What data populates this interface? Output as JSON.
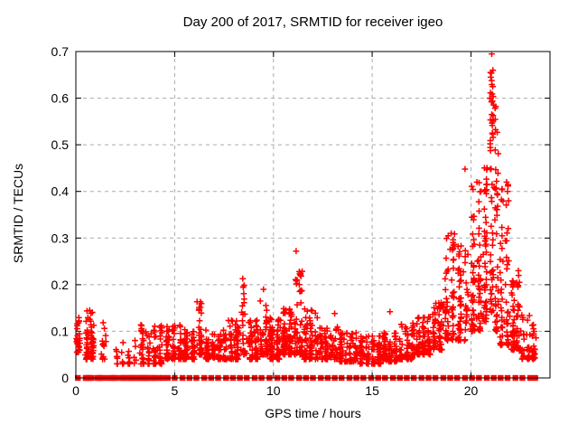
{
  "window": {
    "background": "#ffffff"
  },
  "chart_data": {
    "type": "scatter",
    "title": "Day 200 of 2017, SRMTID for receiver igeo",
    "xlabel": "GPS time / hours",
    "ylabel": "SRMTID / TECUs",
    "xlim": [
      0,
      24
    ],
    "ylim": [
      0,
      0.7
    ],
    "xticks": [
      {
        "v": 0,
        "label": "0"
      },
      {
        "v": 5,
        "label": "5"
      },
      {
        "v": 10,
        "label": "10"
      },
      {
        "v": 15,
        "label": "15"
      },
      {
        "v": 20,
        "label": "20"
      }
    ],
    "yticks": [
      {
        "v": 0.0,
        "label": "0"
      },
      {
        "v": 0.1,
        "label": "0.1"
      },
      {
        "v": 0.2,
        "label": "0.2"
      },
      {
        "v": 0.3,
        "label": "0.3"
      },
      {
        "v": 0.4,
        "label": "0.4"
      },
      {
        "v": 0.5,
        "label": "0.5"
      },
      {
        "v": 0.6,
        "label": "0.6"
      },
      {
        "v": 0.7,
        "label": "0.7"
      }
    ],
    "grid": true,
    "legend": "none",
    "marker": "plus",
    "colors": {
      "marker": "#ff0000",
      "grid": "#aaaaaa",
      "axis": "#000000",
      "text": "#000000"
    },
    "bands": [
      [
        0.02,
        0.22,
        0.055,
        0.13,
        28,
        1.6
      ],
      [
        0.45,
        0.95,
        0.04,
        0.145,
        60,
        1.8
      ],
      [
        1.25,
        1.6,
        0.04,
        0.12,
        14,
        2.0
      ],
      [
        1.9,
        3.15,
        0.03,
        0.085,
        26,
        1.8
      ],
      [
        3.2,
        4.45,
        0.03,
        0.115,
        85,
        2.0
      ],
      [
        4.5,
        5.4,
        0.04,
        0.115,
        85,
        2.0
      ],
      [
        5.4,
        6.1,
        0.04,
        0.105,
        70,
        2.0
      ],
      [
        6.1,
        6.5,
        0.05,
        0.165,
        40,
        2.2
      ],
      [
        6.5,
        7.4,
        0.04,
        0.105,
        80,
        2.0
      ],
      [
        7.4,
        8.3,
        0.04,
        0.125,
        80,
        2.0
      ],
      [
        8.3,
        8.7,
        0.05,
        0.2,
        30,
        2.4
      ],
      [
        8.7,
        9.3,
        0.04,
        0.125,
        65,
        2.0
      ],
      [
        9.3,
        9.75,
        0.05,
        0.165,
        50,
        2.0
      ],
      [
        9.75,
        10.4,
        0.04,
        0.135,
        85,
        2.0
      ],
      [
        10.4,
        11.0,
        0.05,
        0.155,
        90,
        1.8
      ],
      [
        11.0,
        11.5,
        0.05,
        0.23,
        60,
        2.4
      ],
      [
        11.5,
        12.3,
        0.04,
        0.15,
        80,
        2.2
      ],
      [
        12.3,
        13.3,
        0.04,
        0.11,
        85,
        2.0
      ],
      [
        13.3,
        14.3,
        0.035,
        0.1,
        85,
        2.0
      ],
      [
        14.3,
        15.5,
        0.03,
        0.09,
        90,
        1.8
      ],
      [
        15.5,
        16.3,
        0.035,
        0.1,
        75,
        1.8
      ],
      [
        16.3,
        17.2,
        0.04,
        0.12,
        80,
        2.0
      ],
      [
        17.2,
        18.0,
        0.05,
        0.135,
        70,
        1.8
      ],
      [
        18.0,
        18.6,
        0.06,
        0.165,
        60,
        1.7
      ],
      [
        18.6,
        19.25,
        0.08,
        0.31,
        70,
        1.8
      ],
      [
        19.25,
        19.95,
        0.08,
        0.285,
        60,
        1.8
      ],
      [
        19.95,
        20.6,
        0.1,
        0.42,
        80,
        1.7
      ],
      [
        20.6,
        20.9,
        0.12,
        0.47,
        45,
        1.4
      ],
      [
        20.9,
        21.2,
        0.14,
        0.66,
        55,
        1.3
      ],
      [
        21.2,
        21.4,
        0.1,
        0.6,
        40,
        1.5
      ],
      [
        21.4,
        22.0,
        0.07,
        0.42,
        60,
        1.8
      ],
      [
        22.0,
        22.5,
        0.06,
        0.22,
        60,
        1.8
      ],
      [
        22.5,
        23.3,
        0.04,
        0.135,
        55,
        1.8
      ]
    ],
    "outliers": [
      [
        21.05,
        0.695
      ],
      [
        21.0,
        0.645
      ],
      [
        21.1,
        0.625
      ],
      [
        20.95,
        0.6
      ],
      [
        21.15,
        0.585
      ],
      [
        21.05,
        0.565
      ],
      [
        19.7,
        0.448
      ],
      [
        20.3,
        0.42
      ],
      [
        20.5,
        0.4
      ],
      [
        21.8,
        0.42
      ],
      [
        21.85,
        0.4
      ],
      [
        21.9,
        0.38
      ],
      [
        18.85,
        0.305
      ],
      [
        19.0,
        0.31
      ],
      [
        11.15,
        0.272
      ],
      [
        11.2,
        0.21
      ],
      [
        8.45,
        0.213
      ],
      [
        9.5,
        0.19
      ],
      [
        6.3,
        0.163
      ],
      [
        15.9,
        0.142
      ],
      [
        13.1,
        0.138
      ],
      [
        22.4,
        0.23
      ],
      [
        22.45,
        0.205
      ],
      [
        0.7,
        0.145
      ]
    ],
    "zero_line_x": [
      0.1,
      0.5,
      0.6,
      0.7,
      0.8,
      1.1,
      1.2,
      1.3,
      1.55,
      1.8,
      1.9,
      2.0,
      2.3,
      2.4,
      2.5,
      2.7,
      2.8,
      2.9,
      3.05,
      3.15,
      3.3,
      3.4,
      3.5,
      3.6,
      3.75,
      3.9,
      4.0,
      4.2,
      4.4,
      4.65,
      5.0,
      5.4,
      5.75,
      6.1,
      6.5,
      6.85,
      7.2,
      7.6,
      7.95,
      8.3,
      8.65,
      9.05,
      9.4,
      9.8,
      10.2,
      10.55,
      10.9,
      11.3,
      11.65,
      12.0,
      12.4,
      12.75,
      13.1,
      13.45,
      13.85,
      14.2,
      14.55,
      14.95,
      15.3,
      15.65,
      16.05,
      16.4,
      16.75,
      17.1,
      17.5,
      17.85,
      18.2,
      18.6,
      18.95,
      19.3,
      19.7,
      20.05,
      20.4,
      20.8,
      21.15,
      21.5,
      21.85,
      22.25,
      22.6,
      23.0,
      23.25
    ]
  }
}
